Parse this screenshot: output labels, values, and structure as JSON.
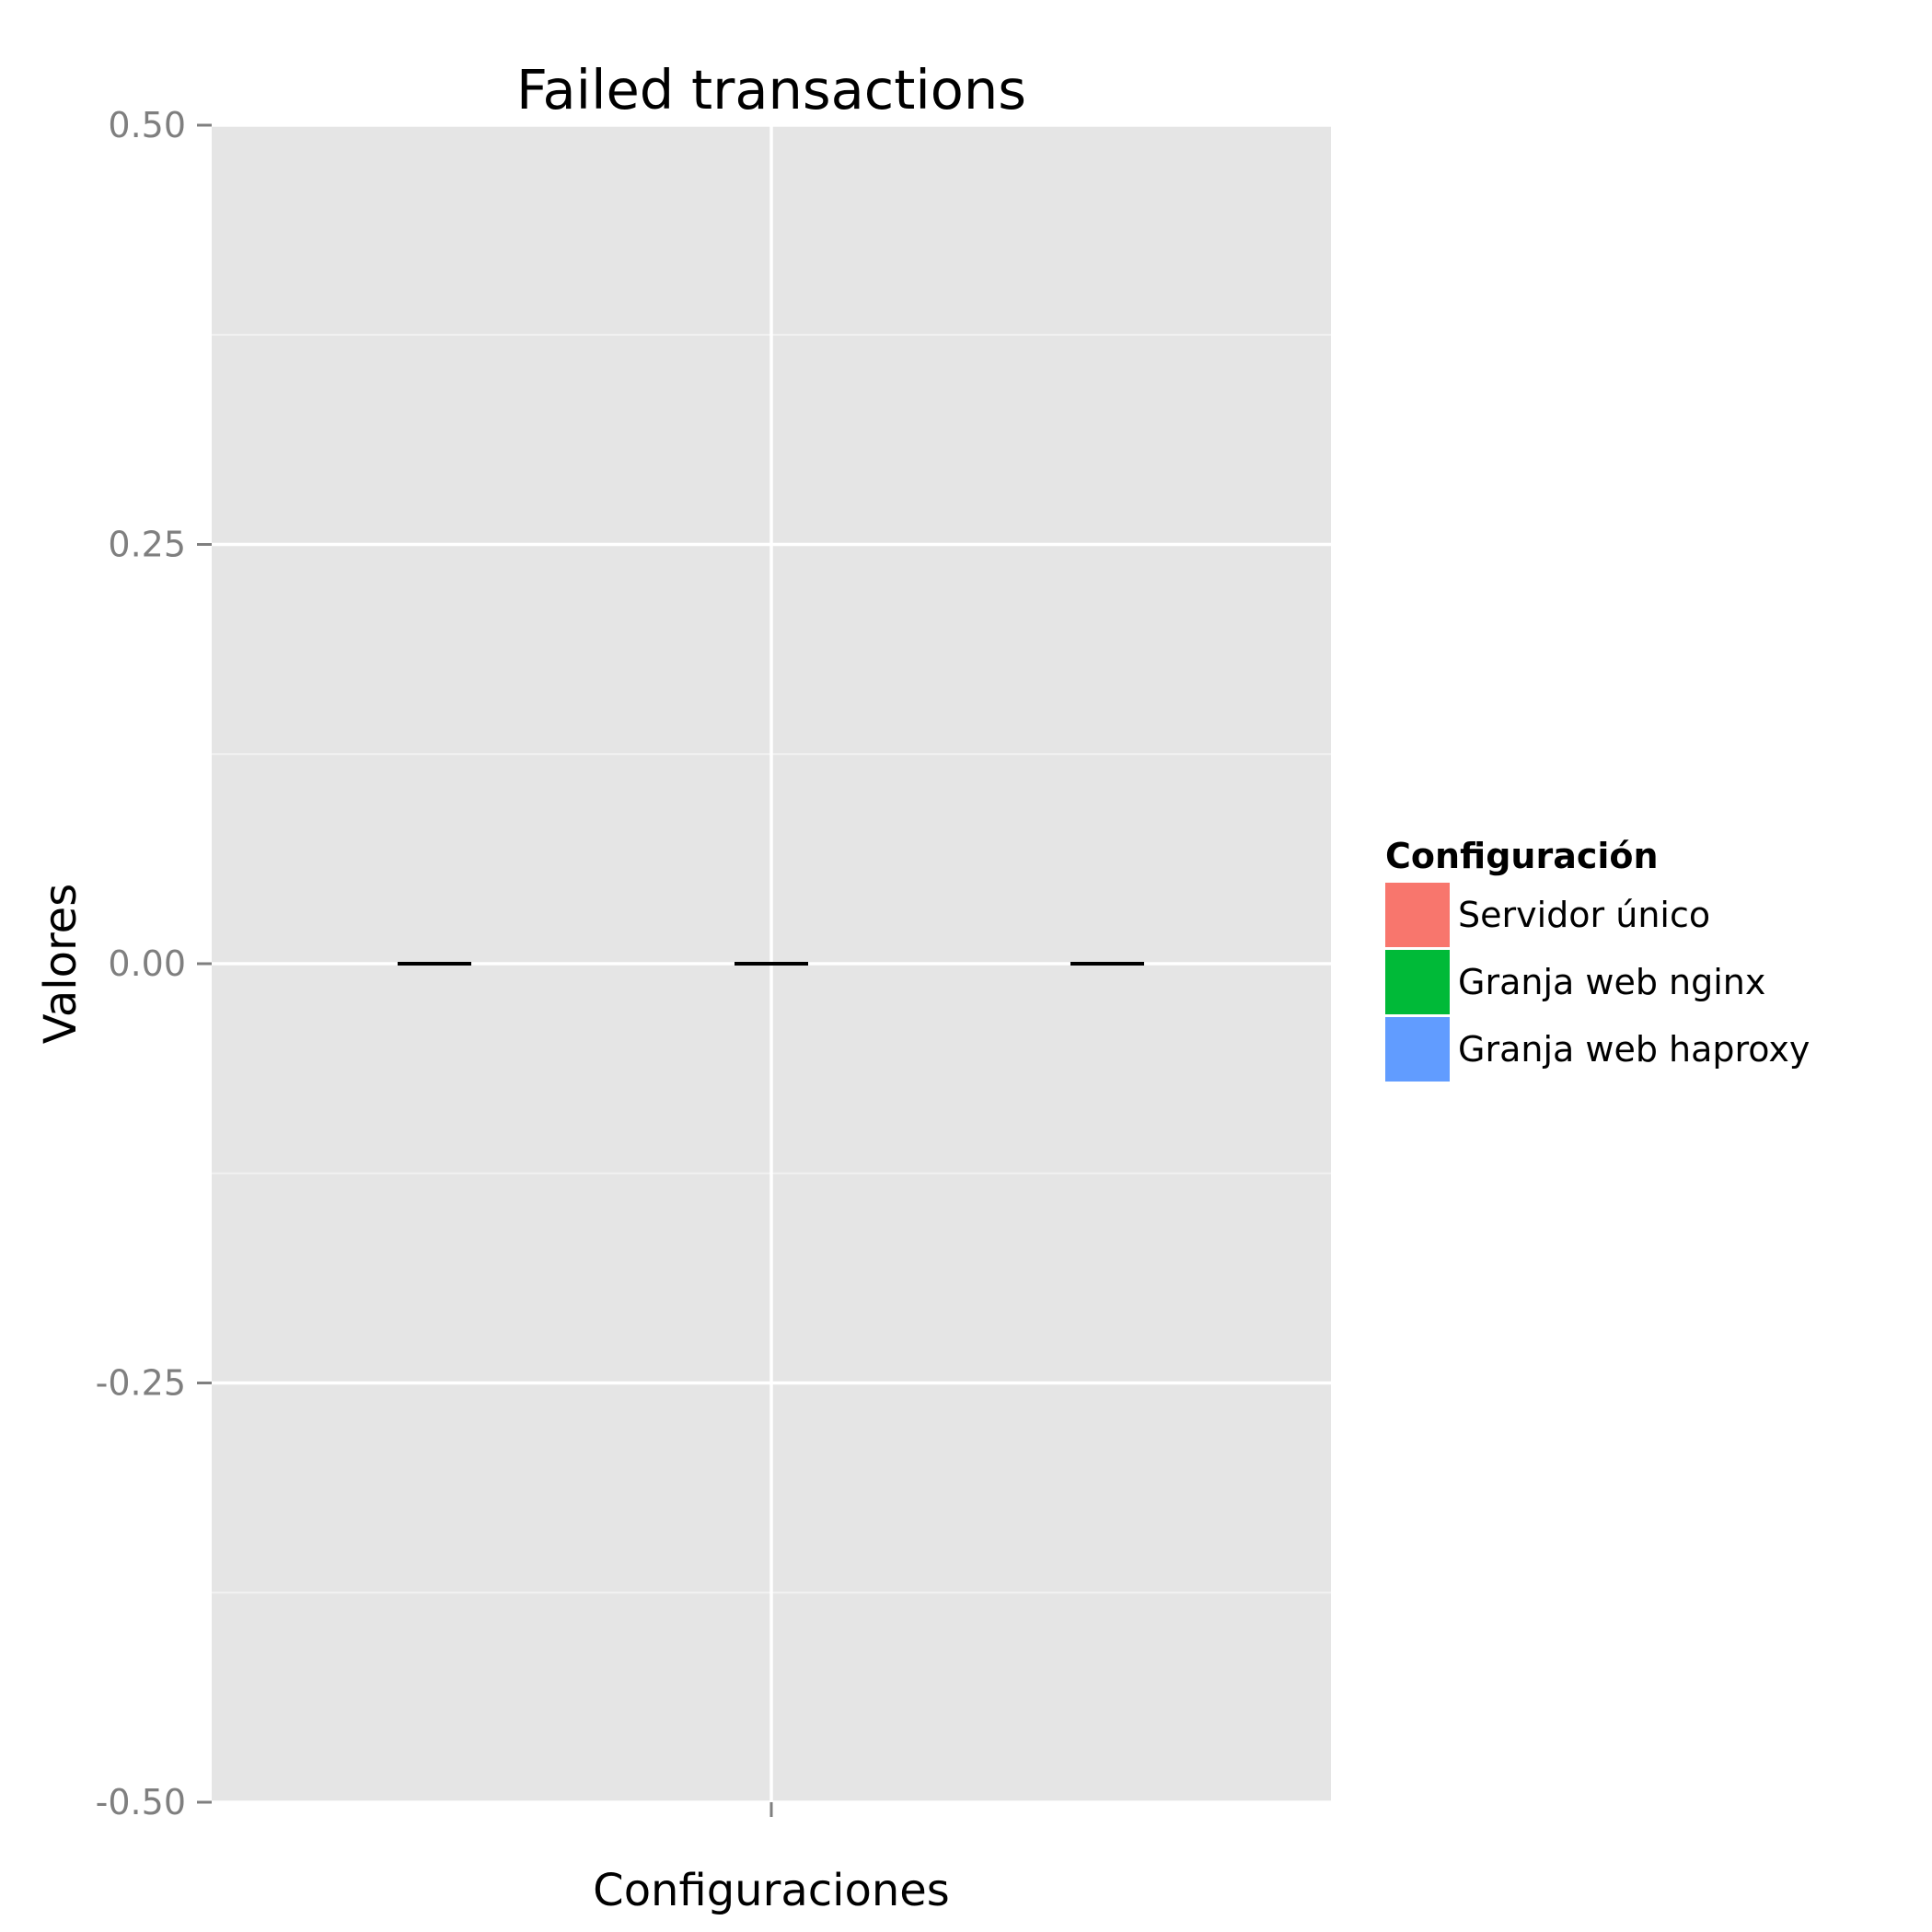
{
  "chart_data": {
    "type": "boxplot",
    "title": "Failed transactions",
    "xlabel": "Configuraciones",
    "ylabel": "Valores",
    "ylim": [
      -0.5,
      0.5
    ],
    "yticks": [
      -0.5,
      -0.25,
      0.0,
      0.25,
      0.5
    ],
    "ytick_labels": [
      "-0.50",
      "-0.25",
      "0.00",
      "0.25",
      "0.50"
    ],
    "grid": true,
    "legend": {
      "title": "Configuración",
      "position": "right",
      "entries": [
        {
          "name": "Servidor único",
          "color": "#F8766D"
        },
        {
          "name": "Granja web nginx",
          "color": "#00BA38"
        },
        {
          "name": "Granja web haproxy",
          "color": "#619CFF"
        }
      ]
    },
    "series": [
      {
        "name": "Servidor único",
        "min": 0,
        "q1": 0,
        "median": 0,
        "q3": 0,
        "max": 0
      },
      {
        "name": "Granja web nginx",
        "min": 0,
        "q1": 0,
        "median": 0,
        "q3": 0,
        "max": 0
      },
      {
        "name": "Granja web haproxy",
        "min": 0,
        "q1": 0,
        "median": 0,
        "q3": 0,
        "max": 0
      }
    ]
  }
}
